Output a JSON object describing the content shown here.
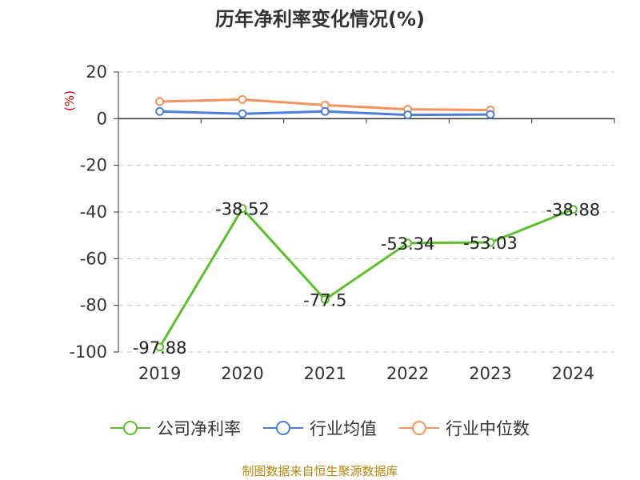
{
  "chart_data": {
    "type": "line",
    "title": "历年净利率变化情况(%)",
    "ylabel": "(%)",
    "xlabel": "",
    "categories": [
      "2019",
      "2020",
      "2021",
      "2022",
      "2023",
      "2024"
    ],
    "ylim": [
      -100,
      20
    ],
    "yticks": [
      20,
      0,
      -20,
      -40,
      -60,
      -80,
      -100
    ],
    "grid": true,
    "legend_position": "bottom",
    "series": [
      {
        "name": "公司净利率",
        "color": "#5cc02b",
        "values": [
          -97.88,
          -38.52,
          -77.5,
          -53.34,
          -53.03,
          -38.88
        ],
        "labels": [
          "-97.88",
          "-38.52",
          "-77.5",
          "-53.34",
          "-53.03",
          "-38.88"
        ]
      },
      {
        "name": "行业均值",
        "color": "#4a7fe0",
        "values": [
          3.1,
          2.1,
          3.1,
          1.6,
          1.8,
          null
        ]
      },
      {
        "name": "行业中位数",
        "color": "#f5925a",
        "values": [
          7.3,
          8.2,
          5.8,
          4.0,
          3.7,
          null
        ]
      }
    ]
  },
  "source": "制图数据来自恒生聚源数据库"
}
